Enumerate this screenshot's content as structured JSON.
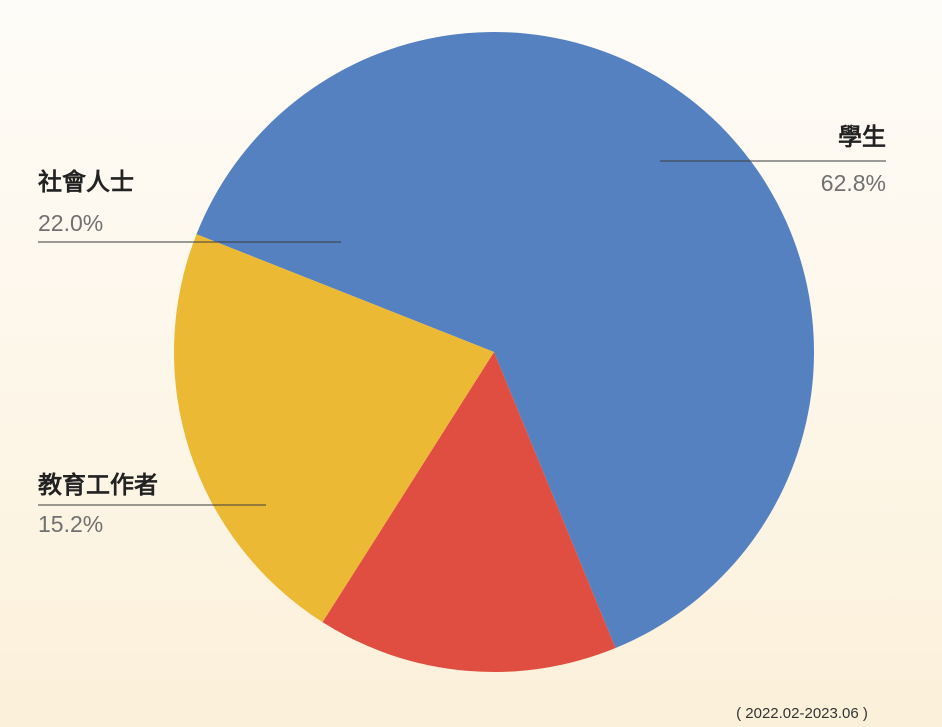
{
  "chart_data": {
    "type": "pie",
    "slices": [
      {
        "label": "學生",
        "value": 62.8,
        "value_label": "62.8%",
        "color": "#5581c1"
      },
      {
        "label": "教育工作者",
        "value": 15.2,
        "value_label": "15.2%",
        "color": "#e04e41"
      },
      {
        "label": "社會人士",
        "value": 22.0,
        "value_label": "22.0%",
        "color": "#ecb935"
      }
    ],
    "legend": "none",
    "note": "( 2022.02-2023.06 )"
  }
}
